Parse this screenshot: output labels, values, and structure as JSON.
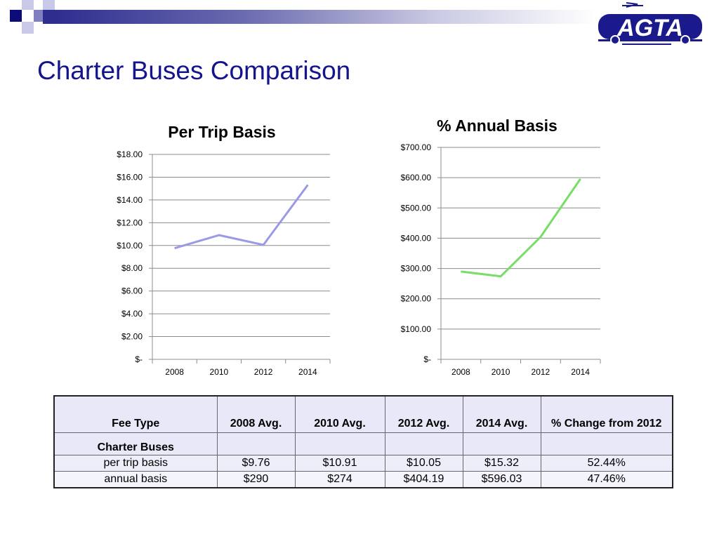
{
  "slide": {
    "title": "Charter Buses Comparison",
    "logo_text": "AGTA",
    "colors": {
      "title": "#14148c",
      "accent_dark": "#0b0b7a",
      "accent_mid": "#8080c0",
      "accent_light": "#c8c8e8"
    }
  },
  "chart_data": [
    {
      "type": "line",
      "title": "Per Trip Basis",
      "categories": [
        "2008",
        "2010",
        "2012",
        "2014"
      ],
      "series": [
        {
          "values": [
            9.76,
            10.91,
            10.05,
            15.32
          ],
          "color": "#9999e6"
        }
      ],
      "ylim": [
        0,
        18
      ],
      "y_ticks": [
        0,
        2,
        4,
        6,
        8,
        10,
        12,
        14,
        16,
        18
      ],
      "y_tick_labels": [
        "$-",
        "$2.00",
        "$4.00",
        "$6.00",
        "$8.00",
        "$10.00",
        "$12.00",
        "$14.00",
        "$16.00",
        "$18.00"
      ],
      "grid": true,
      "xlabel": "",
      "ylabel": ""
    },
    {
      "type": "line",
      "title": "% Annual Basis",
      "categories": [
        "2008",
        "2010",
        "2012",
        "2014"
      ],
      "series": [
        {
          "values": [
            290,
            274,
            404.19,
            596.03
          ],
          "color": "#77dd66"
        }
      ],
      "ylim": [
        0,
        700
      ],
      "y_ticks": [
        0,
        100,
        200,
        300,
        400,
        500,
        600,
        700
      ],
      "y_tick_labels": [
        "$-",
        "$100.00",
        "$200.00",
        "$300.00",
        "$400.00",
        "$500.00",
        "$600.00",
        "$700.00"
      ],
      "grid": true,
      "xlabel": "",
      "ylabel": ""
    }
  ],
  "table": {
    "headers": [
      "Fee Type",
      "2008 Avg.",
      "2010 Avg.",
      "2012 Avg.",
      "2014 Avg.",
      "% Change from 2012"
    ],
    "section": "Charter Buses",
    "rows": [
      [
        "per trip basis",
        "$9.76",
        "$10.91",
        "$10.05",
        "$15.32",
        "52.44%"
      ],
      [
        "annual basis",
        "$290",
        "$274",
        "$404.19",
        "$596.03",
        "47.46%"
      ]
    ]
  }
}
